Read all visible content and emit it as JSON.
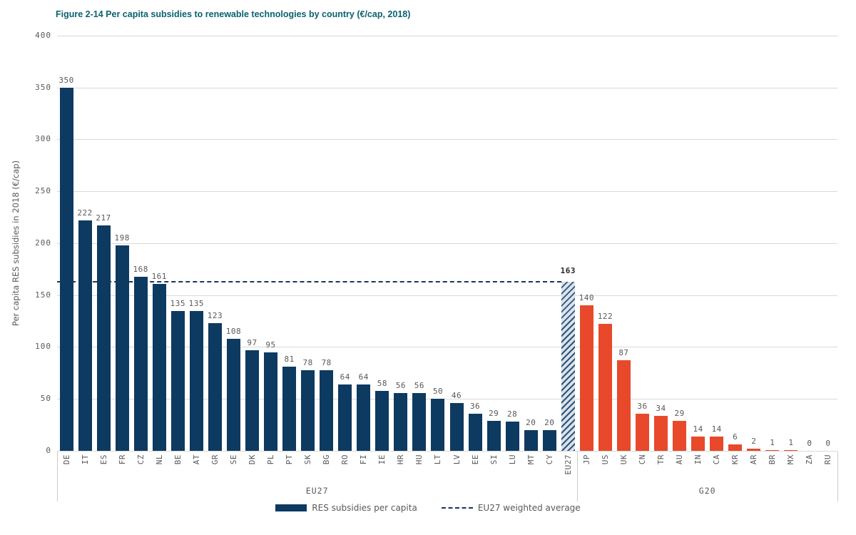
{
  "title": "Figure 2-14 Per capita subsidies to renewable technologies by country (€/cap, 2018)",
  "colors": {
    "title_text": "#0A6270",
    "eu_bar": "#0D3A61",
    "g20_bar": "#E8492B",
    "hatch_stripe": "#2F5578",
    "hatch_base": "#D9E2EC",
    "average_line": "#17375E",
    "gridline": "#D9D9D9",
    "axis_text": "#595959"
  },
  "chart_data": {
    "type": "bar",
    "title": "Figure 2-14 Per capita subsidies to renewable technologies by country (€/cap, 2018)",
    "xlabel": "",
    "ylabel": "Per capita RES subsidies in 2018 (€/cap)",
    "ylim": [
      0,
      400
    ],
    "yticks": [
      0,
      50,
      100,
      150,
      200,
      250,
      300,
      350,
      400
    ],
    "grid": true,
    "legend_position": "bottom",
    "bars": [
      {
        "label": "DE",
        "value": 350,
        "group": "EU27",
        "style": "navy"
      },
      {
        "label": "IT",
        "value": 222,
        "group": "EU27",
        "style": "navy"
      },
      {
        "label": "ES",
        "value": 217,
        "group": "EU27",
        "style": "navy"
      },
      {
        "label": "FR",
        "value": 198,
        "group": "EU27",
        "style": "navy"
      },
      {
        "label": "CZ",
        "value": 168,
        "group": "EU27",
        "style": "navy"
      },
      {
        "label": "NL",
        "value": 161,
        "group": "EU27",
        "style": "navy"
      },
      {
        "label": "BE",
        "value": 135,
        "group": "EU27",
        "style": "navy"
      },
      {
        "label": "AT",
        "value": 135,
        "group": "EU27",
        "style": "navy"
      },
      {
        "label": "GR",
        "value": 123,
        "group": "EU27",
        "style": "navy"
      },
      {
        "label": "SE",
        "value": 108,
        "group": "EU27",
        "style": "navy"
      },
      {
        "label": "DK",
        "value": 97,
        "group": "EU27",
        "style": "navy"
      },
      {
        "label": "PL",
        "value": 95,
        "group": "EU27",
        "style": "navy"
      },
      {
        "label": "PT",
        "value": 81,
        "group": "EU27",
        "style": "navy"
      },
      {
        "label": "SK",
        "value": 78,
        "group": "EU27",
        "style": "navy"
      },
      {
        "label": "BG",
        "value": 78,
        "group": "EU27",
        "style": "navy"
      },
      {
        "label": "RO",
        "value": 64,
        "group": "EU27",
        "style": "navy"
      },
      {
        "label": "FI",
        "value": 64,
        "group": "EU27",
        "style": "navy"
      },
      {
        "label": "IE",
        "value": 58,
        "group": "EU27",
        "style": "navy"
      },
      {
        "label": "HR",
        "value": 56,
        "group": "EU27",
        "style": "navy"
      },
      {
        "label": "HU",
        "value": 56,
        "group": "EU27",
        "style": "navy"
      },
      {
        "label": "LT",
        "value": 50,
        "group": "EU27",
        "style": "navy"
      },
      {
        "label": "LV",
        "value": 46,
        "group": "EU27",
        "style": "navy"
      },
      {
        "label": "EE",
        "value": 36,
        "group": "EU27",
        "style": "navy"
      },
      {
        "label": "SI",
        "value": 29,
        "group": "EU27",
        "style": "navy"
      },
      {
        "label": "LU",
        "value": 28,
        "group": "EU27",
        "style": "navy"
      },
      {
        "label": "MT",
        "value": 20,
        "group": "EU27",
        "style": "navy"
      },
      {
        "label": "CY",
        "value": 20,
        "group": "EU27",
        "style": "navy"
      },
      {
        "label": "EU27",
        "value": 163,
        "group": "EU27",
        "style": "hatched",
        "emphasis": true
      },
      {
        "label": "JP",
        "value": 140,
        "group": "G20",
        "style": "orange"
      },
      {
        "label": "US",
        "value": 122,
        "group": "G20",
        "style": "orange"
      },
      {
        "label": "UK",
        "value": 87,
        "group": "G20",
        "style": "orange"
      },
      {
        "label": "CN",
        "value": 36,
        "group": "G20",
        "style": "orange"
      },
      {
        "label": "TR",
        "value": 34,
        "group": "G20",
        "style": "orange"
      },
      {
        "label": "AU",
        "value": 29,
        "group": "G20",
        "style": "orange"
      },
      {
        "label": "IN",
        "value": 14,
        "group": "G20",
        "style": "orange"
      },
      {
        "label": "CA",
        "value": 14,
        "group": "G20",
        "style": "orange"
      },
      {
        "label": "KR",
        "value": 6,
        "group": "G20",
        "style": "orange"
      },
      {
        "label": "AR",
        "value": 2,
        "group": "G20",
        "style": "orange"
      },
      {
        "label": "BR",
        "value": 1,
        "group": "G20",
        "style": "orange"
      },
      {
        "label": "MX",
        "value": 1,
        "group": "G20",
        "style": "orange"
      },
      {
        "label": "ZA",
        "value": 0,
        "group": "G20",
        "style": "orange"
      },
      {
        "label": "RU",
        "value": 0,
        "group": "G20",
        "style": "orange"
      }
    ],
    "group_labels": [
      "EU27",
      "G20"
    ],
    "average_line": {
      "value": 163,
      "label": "163",
      "legend": "EU27 weighted average"
    },
    "legend": [
      {
        "swatch": "bar",
        "label": "RES subsidies per capita"
      },
      {
        "swatch": "dashed-line",
        "label": "EU27 weighted average"
      }
    ]
  }
}
